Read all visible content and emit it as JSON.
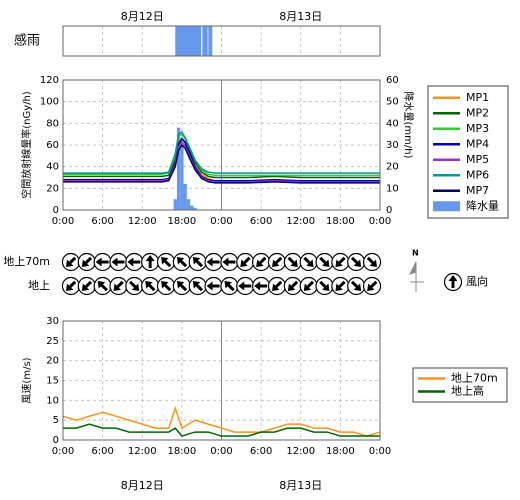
{
  "chart_data": [
    {
      "type": "timeline",
      "label": "感雨",
      "xlim": [
        0,
        48
      ],
      "color": "#6699ee",
      "intervals": [
        [
          17.0,
          20.9
        ],
        [
          21.1,
          21.9
        ],
        [
          22.0,
          22.6
        ]
      ],
      "dates": [
        {
          "value": 12,
          "label": "8月12日"
        },
        {
          "value": 36,
          "label": "8月13日"
        }
      ]
    },
    {
      "type": "line",
      "ylabel": "空間放射線量率(nGy/h)",
      "y2label": "降水量(mm/h)",
      "xlim": [
        0,
        48
      ],
      "ylim": [
        0,
        120
      ],
      "y2lim": [
        0,
        60
      ],
      "xticks": [
        {
          "value": 0,
          "label": "0:00"
        },
        {
          "value": 6,
          "label": "6:00"
        },
        {
          "value": 12,
          "label": "12:00"
        },
        {
          "value": 18,
          "label": "18:00"
        },
        {
          "value": 24,
          "label": "0:00"
        },
        {
          "value": 30,
          "label": "6:00"
        },
        {
          "value": 36,
          "label": "12:00"
        },
        {
          "value": 42,
          "label": "18:00"
        },
        {
          "value": 48,
          "label": "0:00"
        }
      ],
      "yticks": [
        0,
        20,
        40,
        60,
        80,
        100,
        120
      ],
      "y2ticks": [
        0,
        10,
        20,
        30,
        40,
        50,
        60
      ],
      "grid": true,
      "x": [
        0,
        4,
        8,
        12,
        15,
        16,
        17,
        17.5,
        18,
        18.5,
        19,
        20,
        21,
        22,
        23,
        24,
        28,
        32,
        36,
        40,
        44,
        48
      ],
      "series": [
        {
          "name": "MP1",
          "color": "#f7941d",
          "values": [
            27,
            27,
            26,
            27,
            27,
            28,
            40,
            55,
            62,
            60,
            55,
            42,
            33,
            29,
            27,
            26,
            27,
            27,
            26,
            27,
            26,
            26
          ]
        },
        {
          "name": "MP2",
          "color": "#006600",
          "values": [
            31,
            31,
            31,
            31,
            31,
            32,
            46,
            62,
            66,
            63,
            57,
            44,
            35,
            31,
            30,
            30,
            30,
            31,
            30,
            30,
            30,
            30
          ]
        },
        {
          "name": "MP3",
          "color": "#33cc33",
          "values": [
            33,
            33,
            33,
            33,
            33,
            34,
            50,
            68,
            70,
            66,
            60,
            46,
            37,
            33,
            32,
            32,
            32,
            32,
            32,
            32,
            32,
            32
          ]
        },
        {
          "name": "MP4",
          "color": "#0000aa",
          "values": [
            28,
            28,
            28,
            28,
            28,
            29,
            44,
            60,
            66,
            62,
            55,
            40,
            31,
            28,
            27,
            27,
            27,
            28,
            27,
            27,
            27,
            27
          ]
        },
        {
          "name": "MP5",
          "color": "#9933cc",
          "values": [
            27,
            27,
            27,
            27,
            27,
            28,
            42,
            58,
            63,
            59,
            52,
            38,
            30,
            27,
            26,
            26,
            26,
            27,
            26,
            26,
            26,
            26
          ]
        },
        {
          "name": "MP6",
          "color": "#009999",
          "values": [
            34,
            34,
            34,
            34,
            34,
            35,
            52,
            70,
            72,
            67,
            60,
            46,
            38,
            35,
            34,
            34,
            34,
            34,
            34,
            34,
            34,
            34
          ]
        },
        {
          "name": "MP7",
          "color": "#000066",
          "values": [
            26,
            26,
            26,
            26,
            26,
            27,
            40,
            55,
            60,
            57,
            50,
            37,
            29,
            26,
            25,
            25,
            25,
            26,
            25,
            25,
            25,
            25
          ]
        }
      ],
      "bars": {
        "name": "降水量",
        "color": "#6699ee",
        "axis": "y2",
        "x": [
          17,
          17.5,
          18,
          18.5,
          19,
          19.5,
          20
        ],
        "values": [
          5,
          38,
          30,
          12,
          5,
          2,
          1
        ]
      }
    },
    {
      "type": "wind_arrows",
      "legend_label": "風向",
      "compass_label": "N",
      "rows": [
        {
          "name": "地上70m",
          "values": [
            225,
            225,
            270,
            270,
            270,
            0,
            315,
            315,
            315,
            270,
            270,
            225,
            225,
            225,
            135,
            135,
            135,
            225,
            135,
            135
          ]
        },
        {
          "name": "地上",
          "values": [
            225,
            225,
            315,
            225,
            135,
            315,
            315,
            315,
            315,
            270,
            315,
            270,
            270,
            225,
            225,
            225,
            135,
            225,
            135,
            225
          ]
        }
      ]
    },
    {
      "type": "line",
      "ylabel": "風速(m/s)",
      "xlim": [
        0,
        48
      ],
      "ylim": [
        0,
        30
      ],
      "xticks": [
        {
          "value": 0,
          "label": "0:00"
        },
        {
          "value": 6,
          "label": "6:00"
        },
        {
          "value": 12,
          "label": "12:00"
        },
        {
          "value": 18,
          "label": "18:00"
        },
        {
          "value": 24,
          "label": "0:00"
        },
        {
          "value": 30,
          "label": "6:00"
        },
        {
          "value": 36,
          "label": "12:00"
        },
        {
          "value": 42,
          "label": "18:00"
        },
        {
          "value": 48,
          "label": "0:00"
        }
      ],
      "yticks": [
        0,
        5,
        10,
        15,
        20,
        25,
        30
      ],
      "grid": true,
      "x": [
        0,
        2,
        4,
        6,
        8,
        10,
        12,
        14,
        16,
        17,
        18,
        20,
        22,
        24,
        26,
        28,
        30,
        32,
        34,
        36,
        38,
        40,
        42,
        44,
        46,
        48
      ],
      "series": [
        {
          "name": "地上70m",
          "color": "#f7941d",
          "values": [
            6,
            5,
            6,
            7,
            6,
            5,
            4,
            3,
            3,
            8,
            3,
            5,
            4,
            3,
            2,
            2,
            2,
            3,
            4,
            4,
            3,
            3,
            2,
            2,
            1,
            2
          ]
        },
        {
          "name": "地上高",
          "color": "#006600",
          "values": [
            3,
            3,
            4,
            3,
            3,
            2,
            2,
            2,
            2,
            3,
            1,
            2,
            2,
            1,
            1,
            1,
            2,
            2,
            3,
            3,
            2,
            2,
            1,
            1,
            1,
            1
          ]
        }
      ],
      "dates": [
        {
          "value": 12,
          "label": "8月12日"
        },
        {
          "value": 36,
          "label": "8月13日"
        }
      ]
    }
  ]
}
